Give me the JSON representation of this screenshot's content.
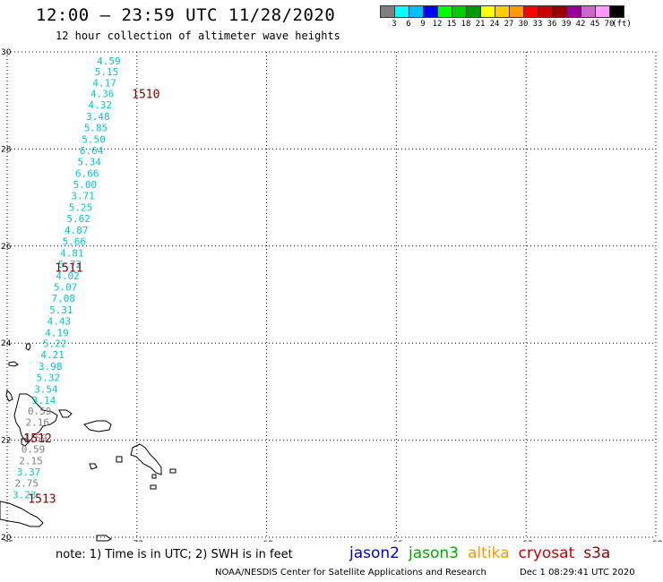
{
  "header": {
    "title": "12:00 – 23:59 UTC 11/28/2020",
    "subtitle": "12 hour collection of altimeter wave heights"
  },
  "legend": {
    "unit": "(ft)",
    "colors": [
      "#808080",
      "#00ffff",
      "#00c0ff",
      "#0000ff",
      "#00ff00",
      "#00cc00",
      "#009900",
      "#ffff00",
      "#ffcc00",
      "#ff9900",
      "#ff0000",
      "#cc0000",
      "#990000",
      "#990099",
      "#cc66cc",
      "#ff99ff",
      "#000000"
    ],
    "labels": [
      "3",
      "6",
      "9",
      "12",
      "15",
      "18",
      "21",
      "24",
      "27",
      "30",
      "33",
      "36",
      "39",
      "42",
      "45",
      "70"
    ]
  },
  "map": {
    "lat_ticks": [
      "30",
      "28",
      "26",
      "24",
      "22",
      "20"
    ],
    "lon_ticks": [
      "-75",
      "-72",
      "-69",
      "-66",
      "-63",
      "-60"
    ],
    "lat_range": [
      20,
      30
    ],
    "lon_range": [
      -75,
      -60
    ],
    "grid": "dotted",
    "track_labels": [
      {
        "text": "1510",
        "lat": 29.14,
        "lon": -72.2
      },
      {
        "text": "1511",
        "lat": 25.56,
        "lon": -73.98
      },
      {
        "text": "1512",
        "lat": 22.05,
        "lon": -74.7
      },
      {
        "text": "1513",
        "lat": 20.8,
        "lon": -74.6
      }
    ],
    "readings": [
      {
        "value": "4.59",
        "lat": 29.82,
        "lon": -72.65,
        "color": "#00c8c8"
      },
      {
        "value": "5.15",
        "lat": 29.59,
        "lon": -72.7,
        "color": "#00c8c8"
      },
      {
        "value": "4.17",
        "lat": 29.36,
        "lon": -72.75,
        "color": "#00c8c8"
      },
      {
        "value": "4.36",
        "lat": 29.14,
        "lon": -72.8,
        "color": "#00c8c8"
      },
      {
        "value": "4.32",
        "lat": 28.91,
        "lon": -72.85,
        "color": "#00c8c8"
      },
      {
        "value": "3.48",
        "lat": 28.67,
        "lon": -72.9,
        "color": "#00c8c8"
      },
      {
        "value": "5.85",
        "lat": 28.44,
        "lon": -72.95,
        "color": "#00c8c8"
      },
      {
        "value": "5.50",
        "lat": 28.2,
        "lon": -73.0,
        "color": "#00c8c8"
      },
      {
        "value": "6.64",
        "lat": 27.97,
        "lon": -73.05,
        "color": "#00c8c8"
      },
      {
        "value": "5.34",
        "lat": 27.74,
        "lon": -73.1,
        "color": "#00c8c8"
      },
      {
        "value": "6.66",
        "lat": 27.5,
        "lon": -73.15,
        "color": "#00c8c8"
      },
      {
        "value": "5.00",
        "lat": 27.27,
        "lon": -73.2,
        "color": "#00c8c8"
      },
      {
        "value": "3.71",
        "lat": 27.04,
        "lon": -73.25,
        "color": "#00c8c8"
      },
      {
        "value": "5.25",
        "lat": 26.8,
        "lon": -73.3,
        "color": "#00c8c8"
      },
      {
        "value": "5.62",
        "lat": 26.57,
        "lon": -73.35,
        "color": "#00c8c8"
      },
      {
        "value": "4.87",
        "lat": 26.33,
        "lon": -73.4,
        "color": "#00c8c8"
      },
      {
        "value": "5.66",
        "lat": 26.1,
        "lon": -73.45,
        "color": "#00c8c8"
      },
      {
        "value": "4.81",
        "lat": 25.86,
        "lon": -73.5,
        "color": "#00c8c8"
      },
      {
        "value": "5.72",
        "lat": 25.63,
        "lon": -73.55,
        "color": "#00c8c8"
      },
      {
        "value": "4.02",
        "lat": 25.39,
        "lon": -73.6,
        "color": "#00c8c8"
      },
      {
        "value": "5.07",
        "lat": 25.16,
        "lon": -73.65,
        "color": "#00c8c8"
      },
      {
        "value": "7.08",
        "lat": 24.93,
        "lon": -73.7,
        "color": "#00c8c8"
      },
      {
        "value": "5.31",
        "lat": 24.69,
        "lon": -73.75,
        "color": "#00c8c8"
      },
      {
        "value": "4.43",
        "lat": 24.46,
        "lon": -73.8,
        "color": "#00c8c8"
      },
      {
        "value": "4.19",
        "lat": 24.22,
        "lon": -73.85,
        "color": "#00c8c8"
      },
      {
        "value": "5.22",
        "lat": 23.99,
        "lon": -73.9,
        "color": "#00c8c8"
      },
      {
        "value": "4.21",
        "lat": 23.76,
        "lon": -73.95,
        "color": "#00c8c8"
      },
      {
        "value": "3.98",
        "lat": 23.52,
        "lon": -74.0,
        "color": "#00c8c8"
      },
      {
        "value": "5.32",
        "lat": 23.29,
        "lon": -74.05,
        "color": "#00c8c8"
      },
      {
        "value": "3.54",
        "lat": 23.05,
        "lon": -74.1,
        "color": "#00c8c8"
      },
      {
        "value": "3.14",
        "lat": 22.82,
        "lon": -74.15,
        "color": "#00c8c8"
      },
      {
        "value": "0.59",
        "lat": 22.6,
        "lon": -74.25,
        "color": "#808080"
      },
      {
        "value": "2.16",
        "lat": 22.37,
        "lon": -74.3,
        "color": "#808080"
      },
      {
        "value": "1.59",
        "lat": 22.05,
        "lon": -74.35,
        "color": "#808080"
      },
      {
        "value": "0.59",
        "lat": 21.82,
        "lon": -74.4,
        "color": "#808080"
      },
      {
        "value": "2.15",
        "lat": 21.58,
        "lon": -74.45,
        "color": "#808080"
      },
      {
        "value": "3.37",
        "lat": 21.35,
        "lon": -74.5,
        "color": "#00c8c8"
      },
      {
        "value": "2.75",
        "lat": 21.12,
        "lon": -74.55,
        "color": "#808080"
      },
      {
        "value": "3.23",
        "lat": 20.88,
        "lon": -74.6,
        "color": "#00c8c8"
      }
    ]
  },
  "footer": {
    "note": "note: 1) Time is in UTC; 2) SWH is in feet",
    "satellites": [
      {
        "name": "jason2",
        "color": "#0000cc"
      },
      {
        "name": "jason3",
        "color": "#00aa00"
      },
      {
        "name": "altika",
        "color": "#ff9900"
      },
      {
        "name": "cryosat",
        "color": "#cc0000"
      },
      {
        "name": "s3a",
        "color": "#990000"
      }
    ],
    "credit": "NOAA/NESDIS Center for Satellite Applications and Research",
    "date": "Dec  1 08:29:41 UTC 2020"
  }
}
